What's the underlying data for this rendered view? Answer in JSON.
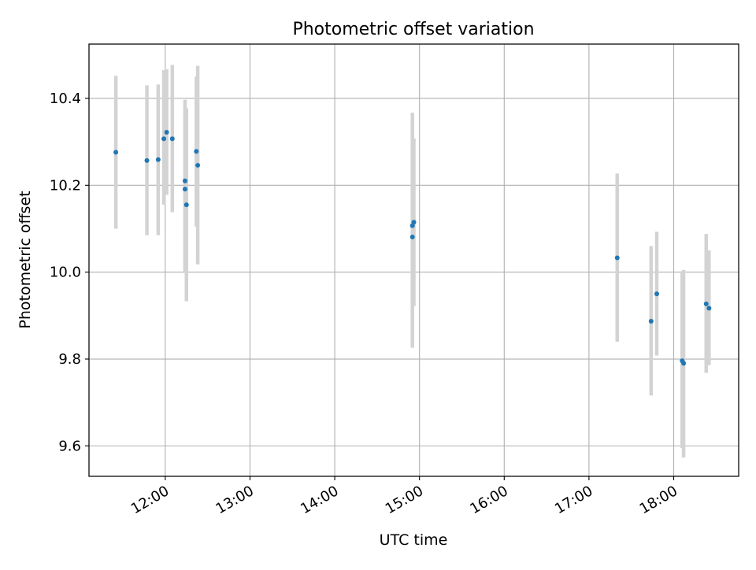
{
  "chart_data": {
    "type": "scatter",
    "title": "Photometric offset variation",
    "xlabel": "UTC time",
    "ylabel": "Photometric offset",
    "x_axis_type": "time",
    "xlim": [
      "11:06",
      "18:46"
    ],
    "ylim": [
      9.53,
      10.525
    ],
    "xticks": [
      "12:00",
      "13:00",
      "14:00",
      "15:00",
      "16:00",
      "17:00",
      "18:00"
    ],
    "yticks": [
      9.6,
      9.8,
      10.0,
      10.2,
      10.4
    ],
    "ytick_labels": [
      "9.6",
      "9.8",
      "10.0",
      "10.2",
      "10.4"
    ],
    "grid": true,
    "legend": "none",
    "point_color": "#1f77b4",
    "errorbar_color": "#d3d3d3",
    "points": [
      {
        "x": "11:25",
        "y": 10.276,
        "ylow": 10.1,
        "yhigh": 10.452
      },
      {
        "x": "11:47",
        "y": 10.257,
        "ylow": 10.085,
        "yhigh": 10.43
      },
      {
        "x": "11:55",
        "y": 10.259,
        "ylow": 10.085,
        "yhigh": 10.432
      },
      {
        "x": "11:59",
        "y": 10.307,
        "ylow": 10.155,
        "yhigh": 10.465
      },
      {
        "x": "12:01",
        "y": 10.322,
        "ylow": 10.178,
        "yhigh": 10.467
      },
      {
        "x": "12:05",
        "y": 10.307,
        "ylow": 10.138,
        "yhigh": 10.477
      },
      {
        "x": "12:14",
        "y": 10.21,
        "ylow": 10.005,
        "yhigh": 10.397
      },
      {
        "x": "12:14",
        "y": 10.191,
        "ylow": 10.0,
        "yhigh": 10.38
      },
      {
        "x": "12:15",
        "y": 10.155,
        "ylow": 9.933,
        "yhigh": 10.377
      },
      {
        "x": "12:22",
        "y": 10.278,
        "ylow": 10.105,
        "yhigh": 10.45
      },
      {
        "x": "12:23",
        "y": 10.246,
        "ylow": 10.018,
        "yhigh": 10.475
      },
      {
        "x": "14:55",
        "y": 10.081,
        "ylow": 9.826,
        "yhigh": 10.367
      },
      {
        "x": "14:55",
        "y": 10.107,
        "ylow": 9.845,
        "yhigh": 10.34
      },
      {
        "x": "14:56",
        "y": 10.115,
        "ylow": 9.922,
        "yhigh": 10.308
      },
      {
        "x": "17:20",
        "y": 10.033,
        "ylow": 9.84,
        "yhigh": 10.227
      },
      {
        "x": "17:44",
        "y": 9.887,
        "ylow": 9.716,
        "yhigh": 10.06
      },
      {
        "x": "17:48",
        "y": 9.95,
        "ylow": 9.808,
        "yhigh": 10.093
      },
      {
        "x": "18:06",
        "y": 9.796,
        "ylow": 9.595,
        "yhigh": 10.002
      },
      {
        "x": "18:07",
        "y": 9.79,
        "ylow": 9.573,
        "yhigh": 10.005
      },
      {
        "x": "18:23",
        "y": 9.927,
        "ylow": 9.768,
        "yhigh": 10.088
      },
      {
        "x": "18:25",
        "y": 9.917,
        "ylow": 9.786,
        "yhigh": 10.05
      }
    ]
  }
}
